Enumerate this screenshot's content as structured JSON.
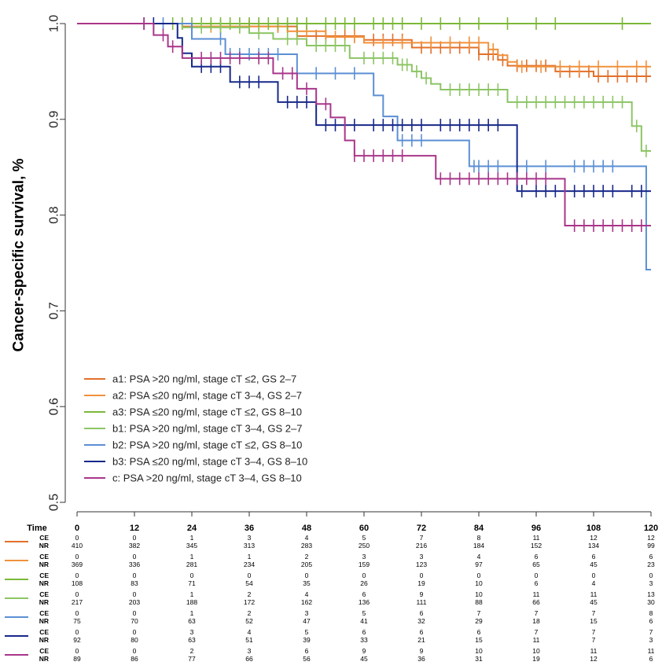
{
  "chart_data": {
    "type": "line",
    "subtype": "kaplan-meier",
    "ylabel": "Cancer-specific survival, %",
    "xlabel": "Time",
    "xlim": [
      0,
      120
    ],
    "ylim": [
      0.5,
      1.0
    ],
    "x_ticks": [
      0,
      12,
      24,
      36,
      48,
      60,
      72,
      84,
      96,
      108,
      120
    ],
    "y_ticks": [
      "0.5",
      "0.6",
      "0.7",
      "0.8",
      "0.9",
      "1.0"
    ],
    "legend_position": "bottom-left",
    "series": [
      {
        "name": "a1: PSA >20 ng/ml, stage cT ≤2, GS 2–7",
        "color": "#e2702a",
        "steps": [
          [
            0,
            1.0
          ],
          [
            22,
            0.997
          ],
          [
            46,
            0.987
          ],
          [
            60,
            0.983
          ],
          [
            70,
            0.975
          ],
          [
            84,
            0.968
          ],
          [
            88,
            0.962
          ],
          [
            90,
            0.956
          ],
          [
            100,
            0.95
          ],
          [
            108,
            0.945
          ]
        ],
        "censors": [
          30,
          36,
          42,
          44,
          50,
          52,
          56,
          58,
          62,
          64,
          66,
          68,
          72,
          74,
          76,
          78,
          80,
          82,
          84,
          86,
          87,
          89,
          92,
          94,
          96,
          98,
          101,
          103,
          105,
          107,
          109,
          111,
          113,
          115,
          117,
          119
        ],
        "ce": [
          "0",
          "0",
          "1",
          "3",
          "4",
          "5",
          "7",
          "8",
          "11",
          "12",
          "12"
        ],
        "nr": [
          "410",
          "382",
          "345",
          "313",
          "283",
          "250",
          "216",
          "184",
          "152",
          "134",
          "99"
        ]
      },
      {
        "name": "a2: PSA ≤20 ng/ml, stage cT 3–4, GS 2–7",
        "color": "#f0913c",
        "steps": [
          [
            0,
            1.0
          ],
          [
            24,
            0.997
          ],
          [
            44,
            0.992
          ],
          [
            52,
            0.986
          ],
          [
            60,
            0.98
          ],
          [
            86,
            0.973
          ],
          [
            88,
            0.967
          ],
          [
            90,
            0.96
          ],
          [
            92,
            0.955
          ]
        ],
        "censors": [
          28,
          34,
          38,
          42,
          48,
          54,
          58,
          64,
          68,
          74,
          78,
          82,
          84,
          87,
          93,
          97,
          101,
          105,
          109,
          113,
          117,
          119
        ],
        "ce": [
          "0",
          "0",
          "1",
          "1",
          "2",
          "3",
          "3",
          "4",
          "6",
          "6",
          "6"
        ],
        "nr": [
          "369",
          "336",
          "281",
          "234",
          "205",
          "159",
          "123",
          "97",
          "65",
          "45",
          "23"
        ]
      },
      {
        "name": "a3: PSA ≤20 ng/ml, stage cT ≤2, GS 8–10",
        "color": "#7bb83a",
        "steps": [
          [
            0,
            1.0
          ]
        ],
        "censors": [
          14,
          20,
          22,
          24,
          26,
          28,
          30,
          32,
          34,
          36,
          38,
          40,
          42,
          44,
          46,
          48,
          52,
          54,
          56,
          58,
          62,
          64,
          66,
          68,
          72,
          76,
          80,
          84,
          90,
          96,
          100,
          114
        ],
        "ce": [
          "0",
          "0",
          "0",
          "0",
          "0",
          "0",
          "0",
          "0",
          "0",
          "0",
          "0"
        ],
        "nr": [
          "108",
          "83",
          "71",
          "54",
          "35",
          "26",
          "19",
          "10",
          "6",
          "4",
          "3"
        ]
      },
      {
        "name": "b1: PSA >20 ng/ml, stage cT 3–4, GS 2–7",
        "color": "#8cc564",
        "steps": [
          [
            0,
            1.0
          ],
          [
            22,
            0.996
          ],
          [
            36,
            0.99
          ],
          [
            41,
            0.984
          ],
          [
            48,
            0.977
          ],
          [
            57,
            0.964
          ],
          [
            67,
            0.957
          ],
          [
            70,
            0.95
          ],
          [
            72,
            0.943
          ],
          [
            74,
            0.937
          ],
          [
            76,
            0.931
          ],
          [
            90,
            0.918
          ],
          [
            116,
            0.893
          ],
          [
            118,
            0.867
          ]
        ],
        "censors": [
          26,
          30,
          34,
          38,
          44,
          46,
          50,
          52,
          54,
          56,
          60,
          62,
          64,
          66,
          68,
          69,
          71,
          73,
          78,
          80,
          82,
          84,
          86,
          88,
          92,
          94,
          96,
          98,
          100,
          102,
          104,
          106,
          108,
          110,
          112,
          114,
          117,
          119
        ],
        "ce": [
          "0",
          "0",
          "1",
          "2",
          "4",
          "6",
          "9",
          "10",
          "11",
          "11",
          "13"
        ],
        "nr": [
          "217",
          "203",
          "188",
          "172",
          "162",
          "136",
          "111",
          "88",
          "66",
          "45",
          "30"
        ]
      },
      {
        "name": "b2: PSA >20 ng/ml, stage cT ≤2, GS 8–10",
        "color": "#5b8fd4",
        "steps": [
          [
            0,
            1.0
          ],
          [
            24,
            0.984
          ],
          [
            31,
            0.968
          ],
          [
            46,
            0.948
          ],
          [
            62,
            0.925
          ],
          [
            64,
            0.903
          ],
          [
            67,
            0.878
          ],
          [
            82,
            0.851
          ],
          [
            119,
            0.743
          ]
        ],
        "censors": [
          18,
          30,
          32,
          34,
          36,
          38,
          40,
          42,
          50,
          54,
          58,
          68,
          70,
          72,
          83,
          84,
          86,
          88,
          92,
          94,
          98,
          104,
          106,
          108,
          110,
          112
        ],
        "ce": [
          "0",
          "0",
          "1",
          "2",
          "3",
          "5",
          "6",
          "7",
          "7",
          "7",
          "8"
        ],
        "nr": [
          "75",
          "70",
          "63",
          "52",
          "47",
          "41",
          "32",
          "29",
          "18",
          "15",
          "6"
        ]
      },
      {
        "name": "b3: PSA ≤20 ng/ml, stage cT 3–4, GS 8–10",
        "color": "#17288a",
        "steps": [
          [
            0,
            1.0
          ],
          [
            21,
            0.985
          ],
          [
            22,
            0.969
          ],
          [
            24,
            0.955
          ],
          [
            32,
            0.939
          ],
          [
            42,
            0.918
          ],
          [
            50,
            0.894
          ],
          [
            92,
            0.825
          ]
        ],
        "censors": [
          14,
          16,
          26,
          28,
          30,
          34,
          36,
          38,
          44,
          46,
          48,
          52,
          54,
          56,
          58,
          62,
          64,
          66,
          68,
          70,
          72,
          76,
          78,
          80,
          82,
          84,
          86,
          88,
          93,
          96,
          98,
          100,
          102,
          104,
          106,
          108,
          110,
          112,
          116,
          118
        ],
        "ce": [
          "0",
          "0",
          "3",
          "4",
          "5",
          "6",
          "6",
          "6",
          "7",
          "7",
          "7"
        ],
        "nr": [
          "92",
          "80",
          "63",
          "51",
          "39",
          "33",
          "21",
          "15",
          "11",
          "7",
          "3"
        ]
      },
      {
        "name": "c: PSA >20 ng/ml, stage cT 3–4, GS 8–10",
        "color": "#a9358a",
        "steps": [
          [
            0,
            1.0
          ],
          [
            16,
            0.988
          ],
          [
            19,
            0.976
          ],
          [
            22,
            0.964
          ],
          [
            41,
            0.948
          ],
          [
            46,
            0.932
          ],
          [
            50,
            0.916
          ],
          [
            53,
            0.902
          ],
          [
            56,
            0.878
          ],
          [
            58,
            0.862
          ],
          [
            75,
            0.838
          ],
          [
            102,
            0.789
          ]
        ],
        "censors": [
          14,
          18,
          20,
          26,
          28,
          30,
          32,
          34,
          38,
          40,
          43,
          45,
          48,
          52,
          58,
          60,
          62,
          64,
          66,
          68,
          76,
          78,
          80,
          82,
          84,
          86,
          88,
          90,
          92,
          94,
          96,
          98,
          104,
          106,
          108,
          110,
          112,
          114,
          116,
          118
        ],
        "ce": [
          "0",
          "0",
          "2",
          "3",
          "6",
          "9",
          "9",
          "10",
          "10",
          "11",
          "11"
        ],
        "nr": [
          "89",
          "86",
          "77",
          "66",
          "56",
          "45",
          "36",
          "31",
          "19",
          "12",
          "6"
        ]
      }
    ]
  },
  "risk_table": {
    "header": "Time",
    "ce_label": "CE",
    "nr_label": "NR"
  }
}
